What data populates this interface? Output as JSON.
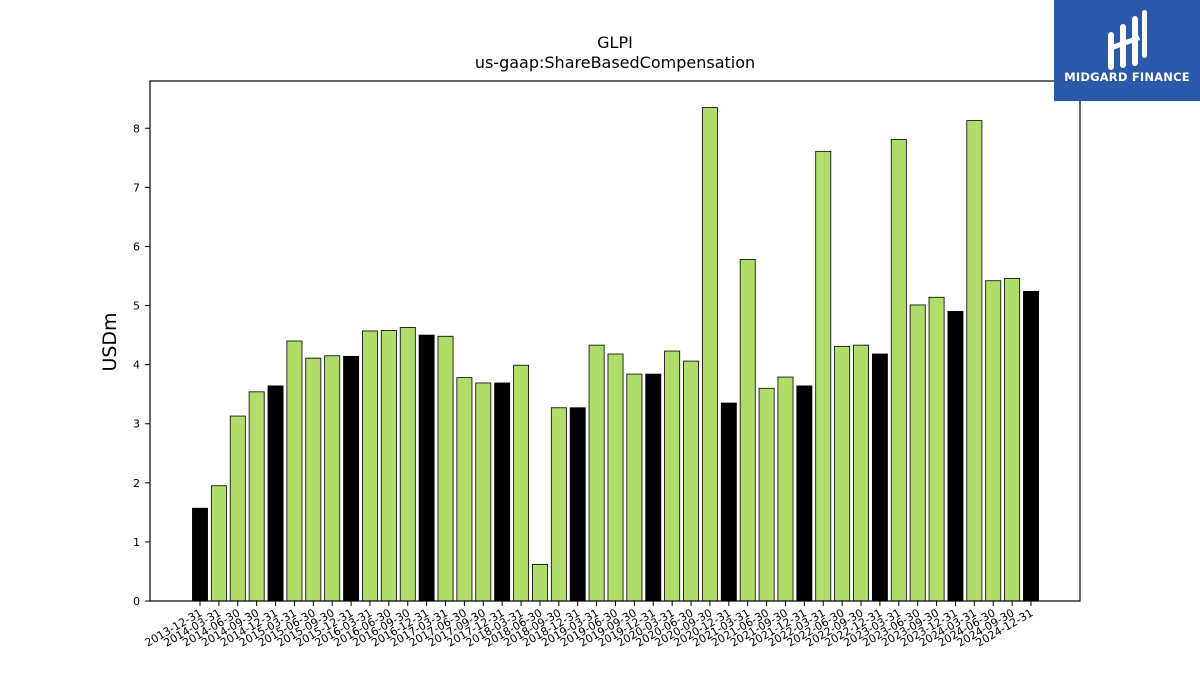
{
  "chart_data": {
    "type": "bar",
    "title": "GLPI",
    "subtitle": "us-gaap:ShareBasedCompensation",
    "xlabel": "",
    "ylabel": "USDm",
    "ylim": [
      0,
      8.8
    ],
    "yticks": [
      0,
      1,
      2,
      3,
      4,
      5,
      6,
      7,
      8
    ],
    "grid": false,
    "colors": {
      "quarter": "#b0dc6a",
      "year_end": "#000000",
      "edge": "#000000"
    },
    "categories": [
      "2013-12-31",
      "2014-03-31",
      "2014-06-30",
      "2014-09-30",
      "2014-12-31",
      "2015-03-31",
      "2015-06-30",
      "2015-09-30",
      "2015-12-31",
      "2016-03-31",
      "2016-06-30",
      "2016-09-30",
      "2016-12-31",
      "2017-03-31",
      "2017-06-30",
      "2017-09-30",
      "2017-12-31",
      "2018-03-31",
      "2018-06-30",
      "2018-09-30",
      "2018-12-31",
      "2019-03-31",
      "2019-06-30",
      "2019-09-30",
      "2019-12-31",
      "2020-03-31",
      "2020-06-30",
      "2020-09-30",
      "2020-12-31",
      "2021-03-31",
      "2021-06-30",
      "2021-09-30",
      "2021-12-31",
      "2022-03-31",
      "2022-06-30",
      "2022-09-30",
      "2022-12-31",
      "2023-03-31",
      "2023-06-30",
      "2023-09-30",
      "2023-12-31",
      "2024-03-31",
      "2024-06-30",
      "2024-09-30",
      "2024-12-31"
    ],
    "values": [
      1.57,
      1.95,
      3.13,
      3.54,
      3.64,
      4.4,
      4.11,
      4.15,
      4.14,
      4.57,
      4.58,
      4.63,
      4.5,
      4.48,
      3.78,
      3.69,
      3.69,
      3.99,
      0.62,
      3.27,
      3.27,
      4.33,
      4.18,
      3.84,
      3.84,
      4.23,
      4.06,
      8.35,
      3.35,
      5.78,
      3.6,
      3.79,
      3.64,
      7.61,
      4.31,
      4.33,
      4.18,
      7.81,
      5.01,
      5.14,
      4.9,
      8.13,
      5.42,
      5.46,
      5.24
    ]
  },
  "logo": {
    "text": "MIDGARD FINANCE",
    "icon": "midgard-logo-icon"
  }
}
